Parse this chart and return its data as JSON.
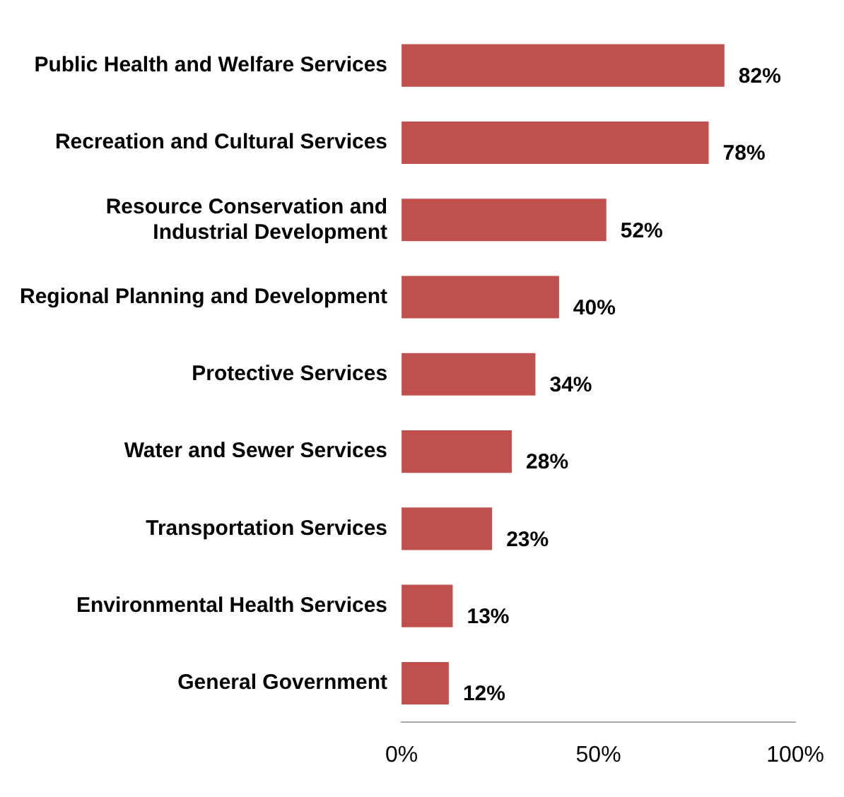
{
  "chart_data": {
    "type": "bar",
    "orientation": "horizontal",
    "categories": [
      "Public Health and Welfare Services",
      "Recreation and Cultural Services",
      "Resource Conservation and Industrial Development",
      "Regional Planning and Development",
      "Protective Services",
      "Water and Sewer Services",
      "Transportation Services",
      "Environmental Health Services",
      "General Government"
    ],
    "values": [
      82,
      78,
      52,
      40,
      34,
      28,
      23,
      13,
      12
    ],
    "value_labels": [
      "82%",
      "78%",
      "52%",
      "40%",
      "34%",
      "28%",
      "23%",
      "13%",
      "12%"
    ],
    "color": "#c0504d",
    "xlim": [
      0,
      100
    ],
    "xticks": [
      {
        "value": 0,
        "label": "0%"
      },
      {
        "value": 50,
        "label": "50%"
      },
      {
        "value": 100,
        "label": "100%"
      }
    ],
    "grid": false,
    "legend": false
  }
}
